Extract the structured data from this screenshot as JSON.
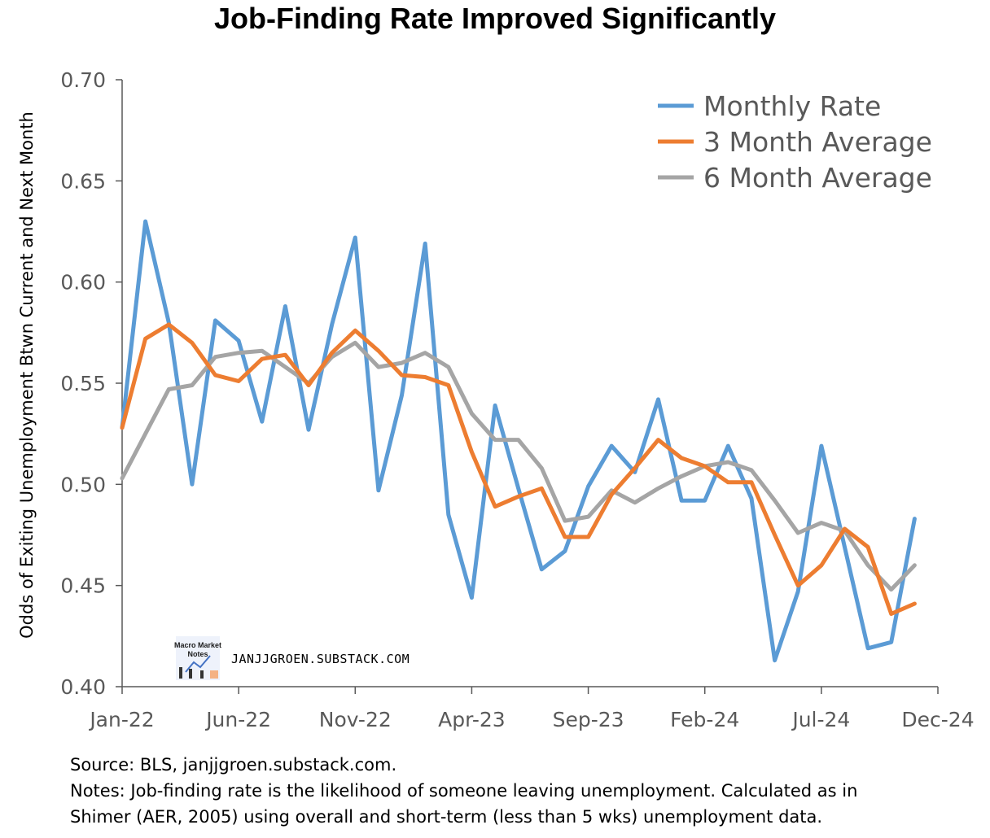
{
  "watermark": "JANJJGROEN.SUBSTACK.COM",
  "logo_text": [
    "Macro Market",
    "Notes"
  ],
  "source": "Source: BLS, janjjgroen.substack.com.",
  "notes": [
    "Notes: Job-finding rate is the likelihood of someone leaving unemployment. Calculated as in",
    "Shimer (AER, 2005) using overall and short-term (less than 5 wks) unemployment data."
  ],
  "colors": {
    "monthly": "#5B9BD5",
    "avg3": "#ED7D31",
    "avg6": "#A5A5A5"
  },
  "chart_data": {
    "type": "line",
    "title": "Job-Finding Rate Improved Significantly",
    "ylabel": "Odds of Exiting Unemployment Btwn Current and Next Month",
    "xlabel": "",
    "ylim": [
      0.4,
      0.7
    ],
    "yticks": [
      "0.40",
      "0.45",
      "0.50",
      "0.55",
      "0.60",
      "0.65",
      "0.70"
    ],
    "xticks": [
      "Jan-22",
      "Jun-22",
      "Nov-22",
      "Apr-23",
      "Sep-23",
      "Feb-24",
      "Jul-24",
      "Dec-24"
    ],
    "legend_position": "top-right",
    "grid": false,
    "x": [
      "Jan-22",
      "Feb-22",
      "Mar-22",
      "Apr-22",
      "May-22",
      "Jun-22",
      "Jul-22",
      "Aug-22",
      "Sep-22",
      "Oct-22",
      "Nov-22",
      "Dec-22",
      "Jan-23",
      "Feb-23",
      "Mar-23",
      "Apr-23",
      "May-23",
      "Jun-23",
      "Jul-23",
      "Aug-23",
      "Sep-23",
      "Oct-23",
      "Nov-23",
      "Dec-23",
      "Jan-24",
      "Feb-24",
      "Mar-24",
      "Apr-24",
      "May-24",
      "Jun-24",
      "Jul-24",
      "Aug-24",
      "Sep-24",
      "Oct-24",
      "Nov-24"
    ],
    "series": [
      {
        "name": "Monthly Rate",
        "values": [
          0.528,
          0.63,
          0.58,
          0.5,
          0.581,
          0.571,
          0.531,
          0.588,
          0.527,
          0.579,
          0.622,
          0.497,
          0.544,
          0.619,
          0.485,
          0.444,
          0.539,
          0.498,
          0.458,
          0.467,
          0.499,
          0.519,
          0.506,
          0.542,
          0.492,
          0.492,
          0.519,
          0.493,
          0.413,
          0.447,
          0.519,
          0.469,
          0.419,
          0.422,
          0.483
        ]
      },
      {
        "name": "3 Month Average",
        "values": [
          0.528,
          0.572,
          0.579,
          0.57,
          0.554,
          0.551,
          0.562,
          0.564,
          0.549,
          0.565,
          0.576,
          0.566,
          0.554,
          0.553,
          0.549,
          0.516,
          0.489,
          0.494,
          0.498,
          0.474,
          0.474,
          0.495,
          0.508,
          0.522,
          0.513,
          0.509,
          0.501,
          0.501,
          0.475,
          0.45,
          0.46,
          0.478,
          0.469,
          0.436,
          0.441
        ]
      },
      {
        "name": "6 Month Average",
        "values": [
          0.503,
          0.525,
          0.547,
          0.549,
          0.563,
          0.565,
          0.566,
          0.558,
          0.55,
          0.563,
          0.57,
          0.558,
          0.56,
          0.565,
          0.558,
          0.535,
          0.522,
          0.522,
          0.508,
          0.482,
          0.484,
          0.497,
          0.491,
          0.498,
          0.504,
          0.509,
          0.511,
          0.507,
          0.492,
          0.476,
          0.481,
          0.477,
          0.46,
          0.448,
          0.46
        ]
      }
    ]
  }
}
